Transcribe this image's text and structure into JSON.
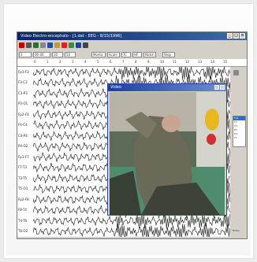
{
  "window": {
    "title": "Video Electro-encephalo - [1.dat - EEG - 8/15/1996]",
    "controls": [
      "_",
      "□",
      "×"
    ]
  },
  "toolbar": {
    "fields": [
      "1",
      "00:00",
      "10",
      "50",
      "Stop"
    ],
    "filter_fields": [
      "Monta",
      "Scale",
      "TC",
      "HF",
      "Notch"
    ]
  },
  "ruler": {
    "ticks": [
      "0",
      "1",
      "2",
      "3",
      "4",
      "5",
      "6",
      "7",
      "8",
      "9",
      "10",
      "11",
      "12",
      "13",
      "14",
      "15"
    ]
  },
  "channels": [
    "Fp1-F3",
    "F3-C3",
    "C3-P3",
    "P3-O1",
    "Fp2-F4",
    "F4-C4",
    "C4-P4",
    "P4-O2",
    "Fp1-F7",
    "F7-T3",
    "T3-T5",
    "T5-O1",
    "Fp2-F8",
    "F8-T4",
    "T4-T6",
    "T6-O2"
  ],
  "video": {
    "title": "Video"
  },
  "right_panel": {
    "list": [
      "Fp1",
      "F3",
      "C3",
      "P3",
      "O1",
      "F7"
    ],
    "selected_index": 0,
    "bottom_label": "Notes"
  },
  "colors": {
    "titlebar_start": "#0a246a",
    "titlebar_end": "#3a6ea5",
    "eeg_trace": "#1a1a1a",
    "video_border": "#2b4aa0"
  }
}
